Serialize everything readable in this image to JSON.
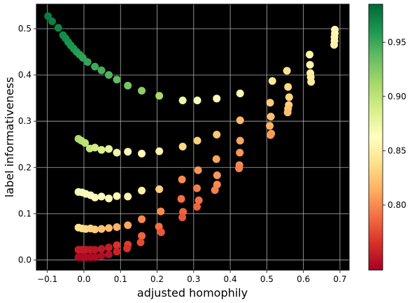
{
  "chart_data": {
    "type": "scatter",
    "title": "",
    "xlabel": "adjusted homophily",
    "ylabel": "label informativeness",
    "xlim": [
      -0.13,
      0.725
    ],
    "ylim": [
      -0.022,
      0.553
    ],
    "xticks": [
      -0.1,
      0.0,
      0.1,
      0.2,
      0.3,
      0.4,
      0.5,
      0.6,
      0.7
    ],
    "xtick_labels": [
      "−0.1",
      "0.0",
      "0.1",
      "0.2",
      "0.3",
      "0.4",
      "0.5",
      "0.6",
      "0.7"
    ],
    "yticks": [
      0.0,
      0.1,
      0.2,
      0.3,
      0.4,
      0.5
    ],
    "ytick_labels": [
      "0.0",
      "0.1",
      "0.2",
      "0.3",
      "0.4",
      "0.5"
    ],
    "grid": true,
    "background": "#000000",
    "grid_color": "#b0b0b0",
    "colormap": "RdYlGn",
    "colorbar": {
      "min": 0.74,
      "max": 0.985,
      "ticks": [
        0.8,
        0.85,
        0.9,
        0.95
      ],
      "tick_labels": [
        "0.80",
        "0.85",
        "0.90",
        "0.95"
      ]
    },
    "points": [
      {
        "x": -0.098,
        "y": 0.527,
        "c": 0.975
      },
      {
        "x": -0.087,
        "y": 0.516,
        "c": 0.973
      },
      {
        "x": -0.07,
        "y": 0.502,
        "c": 0.97
      },
      {
        "x": -0.057,
        "y": 0.486,
        "c": 0.968
      },
      {
        "x": -0.05,
        "y": 0.479,
        "c": 0.966
      },
      {
        "x": -0.043,
        "y": 0.471,
        "c": 0.964
      },
      {
        "x": -0.036,
        "y": 0.464,
        "c": 0.962
      },
      {
        "x": -0.028,
        "y": 0.457,
        "c": 0.96
      },
      {
        "x": -0.02,
        "y": 0.45,
        "c": 0.958
      },
      {
        "x": -0.012,
        "y": 0.444,
        "c": 0.956
      },
      {
        "x": -0.003,
        "y": 0.437,
        "c": 0.954
      },
      {
        "x": 0.01,
        "y": 0.428,
        "c": 0.952
      },
      {
        "x": 0.03,
        "y": 0.418,
        "c": 0.949
      },
      {
        "x": 0.048,
        "y": 0.41,
        "c": 0.946
      },
      {
        "x": 0.068,
        "y": 0.4,
        "c": 0.942
      },
      {
        "x": 0.09,
        "y": 0.39,
        "c": 0.937
      },
      {
        "x": 0.12,
        "y": 0.377,
        "c": 0.93
      },
      {
        "x": 0.158,
        "y": 0.366,
        "c": 0.922
      },
      {
        "x": 0.206,
        "y": 0.355,
        "c": 0.91
      },
      {
        "x": 0.27,
        "y": 0.345,
        "c": 0.875
      },
      {
        "x": 0.31,
        "y": 0.345,
        "c": 0.865
      },
      {
        "x": 0.363,
        "y": 0.349,
        "c": 0.86
      },
      {
        "x": 0.427,
        "y": 0.36,
        "c": 0.86
      },
      {
        "x": 0.515,
        "y": 0.387,
        "c": 0.845
      },
      {
        "x": 0.555,
        "y": 0.409,
        "c": 0.84
      },
      {
        "x": 0.617,
        "y": 0.444,
        "c": 0.855
      },
      {
        "x": 0.618,
        "y": 0.422,
        "c": 0.852
      },
      {
        "x": 0.619,
        "y": 0.404,
        "c": 0.85
      },
      {
        "x": 0.62,
        "y": 0.395,
        "c": 0.848
      },
      {
        "x": 0.621,
        "y": 0.385,
        "c": 0.846
      },
      {
        "x": 0.686,
        "y": 0.498,
        "c": 0.86
      },
      {
        "x": 0.686,
        "y": 0.49,
        "c": 0.858
      },
      {
        "x": 0.685,
        "y": 0.482,
        "c": 0.856
      },
      {
        "x": 0.685,
        "y": 0.474,
        "c": 0.854
      },
      {
        "x": 0.684,
        "y": 0.465,
        "c": 0.852
      },
      {
        "x": 0.558,
        "y": 0.374,
        "c": 0.835
      },
      {
        "x": 0.561,
        "y": 0.352,
        "c": 0.832
      },
      {
        "x": 0.56,
        "y": 0.335,
        "c": 0.83
      },
      {
        "x": 0.558,
        "y": 0.327,
        "c": 0.826
      },
      {
        "x": 0.557,
        "y": 0.319,
        "c": 0.822
      },
      {
        "x": 0.509,
        "y": 0.34,
        "c": 0.828
      },
      {
        "x": 0.511,
        "y": 0.31,
        "c": 0.822
      },
      {
        "x": 0.508,
        "y": 0.29,
        "c": 0.816
      },
      {
        "x": 0.512,
        "y": 0.273,
        "c": 0.81
      },
      {
        "x": 0.51,
        "y": 0.27,
        "c": 0.806
      },
      {
        "x": -0.015,
        "y": 0.262,
        "c": 0.91
      },
      {
        "x": -0.007,
        "y": 0.258,
        "c": 0.905
      },
      {
        "x": 0.003,
        "y": 0.253,
        "c": 0.9
      },
      {
        "x": 0.016,
        "y": 0.241,
        "c": 0.895
      },
      {
        "x": 0.03,
        "y": 0.243,
        "c": 0.89
      },
      {
        "x": 0.048,
        "y": 0.238,
        "c": 0.885
      },
      {
        "x": 0.068,
        "y": 0.24,
        "c": 0.88
      },
      {
        "x": 0.09,
        "y": 0.232,
        "c": 0.874
      },
      {
        "x": 0.12,
        "y": 0.234,
        "c": 0.866
      },
      {
        "x": 0.158,
        "y": 0.23,
        "c": 0.86
      },
      {
        "x": 0.206,
        "y": 0.235,
        "c": 0.855
      },
      {
        "x": 0.27,
        "y": 0.245,
        "c": 0.835
      },
      {
        "x": 0.31,
        "y": 0.258,
        "c": 0.83
      },
      {
        "x": 0.363,
        "y": 0.271,
        "c": 0.825
      },
      {
        "x": 0.427,
        "y": 0.302,
        "c": 0.82
      },
      {
        "x": 0.427,
        "y": 0.258,
        "c": 0.81
      },
      {
        "x": 0.426,
        "y": 0.232,
        "c": 0.805
      },
      {
        "x": 0.425,
        "y": 0.205,
        "c": 0.8
      },
      {
        "x": 0.424,
        "y": 0.198,
        "c": 0.797
      },
      {
        "x": 0.362,
        "y": 0.218,
        "c": 0.81
      },
      {
        "x": 0.364,
        "y": 0.183,
        "c": 0.805
      },
      {
        "x": 0.364,
        "y": 0.163,
        "c": 0.8
      },
      {
        "x": 0.358,
        "y": 0.151,
        "c": 0.796
      },
      {
        "x": 0.312,
        "y": 0.194,
        "c": 0.805
      },
      {
        "x": 0.309,
        "y": 0.155,
        "c": 0.795
      },
      {
        "x": 0.314,
        "y": 0.129,
        "c": 0.79
      },
      {
        "x": 0.309,
        "y": 0.115,
        "c": 0.785
      },
      {
        "x": 0.268,
        "y": 0.174,
        "c": 0.8
      },
      {
        "x": 0.266,
        "y": 0.132,
        "c": 0.79
      },
      {
        "x": 0.271,
        "y": 0.104,
        "c": 0.785
      },
      {
        "x": 0.269,
        "y": 0.092,
        "c": 0.78
      },
      {
        "x": -0.015,
        "y": 0.147,
        "c": 0.87
      },
      {
        "x": -0.005,
        "y": 0.146,
        "c": 0.868
      },
      {
        "x": 0.005,
        "y": 0.143,
        "c": 0.866
      },
      {
        "x": 0.018,
        "y": 0.14,
        "c": 0.864
      },
      {
        "x": 0.03,
        "y": 0.135,
        "c": 0.862
      },
      {
        "x": 0.048,
        "y": 0.137,
        "c": 0.86
      },
      {
        "x": 0.068,
        "y": 0.133,
        "c": 0.858
      },
      {
        "x": 0.09,
        "y": 0.138,
        "c": 0.856
      },
      {
        "x": 0.12,
        "y": 0.137,
        "c": 0.854
      },
      {
        "x": 0.158,
        "y": 0.15,
        "c": 0.85
      },
      {
        "x": 0.206,
        "y": 0.153,
        "c": 0.83
      },
      {
        "x": 0.21,
        "y": 0.105,
        "c": 0.8
      },
      {
        "x": 0.205,
        "y": 0.072,
        "c": 0.79
      },
      {
        "x": 0.211,
        "y": 0.06,
        "c": 0.78
      },
      {
        "x": -0.015,
        "y": 0.07,
        "c": 0.84
      },
      {
        "x": -0.005,
        "y": 0.068,
        "c": 0.838
      },
      {
        "x": 0.005,
        "y": 0.067,
        "c": 0.835
      },
      {
        "x": 0.018,
        "y": 0.068,
        "c": 0.832
      },
      {
        "x": 0.03,
        "y": 0.066,
        "c": 0.828
      },
      {
        "x": 0.048,
        "y": 0.067,
        "c": 0.824
      },
      {
        "x": 0.068,
        "y": 0.069,
        "c": 0.82
      },
      {
        "x": 0.09,
        "y": 0.071,
        "c": 0.816
      },
      {
        "x": 0.12,
        "y": 0.075,
        "c": 0.81
      },
      {
        "x": 0.158,
        "y": 0.088,
        "c": 0.8
      },
      {
        "x": 0.158,
        "y": 0.052,
        "c": 0.785
      },
      {
        "x": 0.155,
        "y": 0.038,
        "c": 0.775
      },
      {
        "x": 0.12,
        "y": 0.033,
        "c": 0.77
      },
      {
        "x": 0.118,
        "y": 0.025,
        "c": 0.765
      },
      {
        "x": 0.09,
        "y": 0.032,
        "c": 0.765
      },
      {
        "x": 0.09,
        "y": 0.018,
        "c": 0.758
      },
      {
        "x": -0.015,
        "y": 0.022,
        "c": 0.755
      },
      {
        "x": -0.005,
        "y": 0.022,
        "c": 0.754
      },
      {
        "x": 0.005,
        "y": 0.022,
        "c": 0.753
      },
      {
        "x": 0.018,
        "y": 0.022,
        "c": 0.752
      },
      {
        "x": 0.03,
        "y": 0.022,
        "c": 0.751
      },
      {
        "x": 0.048,
        "y": 0.024,
        "c": 0.752
      },
      {
        "x": 0.068,
        "y": 0.027,
        "c": 0.755
      },
      {
        "x": -0.015,
        "y": 0.006,
        "c": 0.745
      },
      {
        "x": -0.005,
        "y": 0.006,
        "c": 0.745
      },
      {
        "x": 0.005,
        "y": 0.006,
        "c": 0.745
      },
      {
        "x": 0.018,
        "y": 0.006,
        "c": 0.745
      },
      {
        "x": 0.03,
        "y": 0.006,
        "c": 0.745
      },
      {
        "x": 0.048,
        "y": 0.009,
        "c": 0.746
      },
      {
        "x": 0.068,
        "y": 0.012,
        "c": 0.748
      }
    ]
  }
}
